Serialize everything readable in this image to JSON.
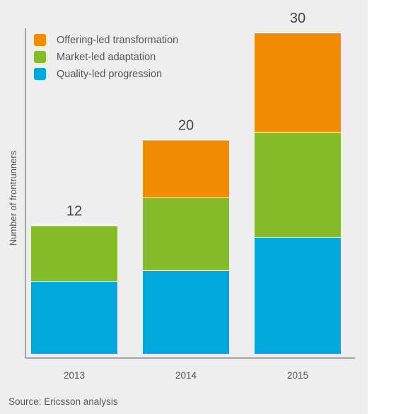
{
  "chart_data": {
    "type": "bar",
    "stacked": true,
    "categories": [
      "2013",
      "2014",
      "2015"
    ],
    "series": [
      {
        "name": "Quality-led progression",
        "values": [
          6.8,
          7.8,
          10.9
        ],
        "color": "#00a8dd"
      },
      {
        "name": "Market-led adaptation",
        "values": [
          5.2,
          6.8,
          9.8
        ],
        "color": "#86bc2a"
      },
      {
        "name": "Offering-led transformation",
        "values": [
          0,
          5.4,
          9.3
        ],
        "color": "#f28c00"
      }
    ],
    "totals": [
      "12",
      "20",
      "30"
    ],
    "legend_order": [
      "Offering-led transformation",
      "Market-led adaptation",
      "Quality-led progression"
    ],
    "legend_placement": "top-left",
    "ylabel": "Number of frontrunners",
    "xlabel": "",
    "ylim": [
      0,
      30
    ],
    "grid": false,
    "source": "Source: Ericsson analysis"
  }
}
